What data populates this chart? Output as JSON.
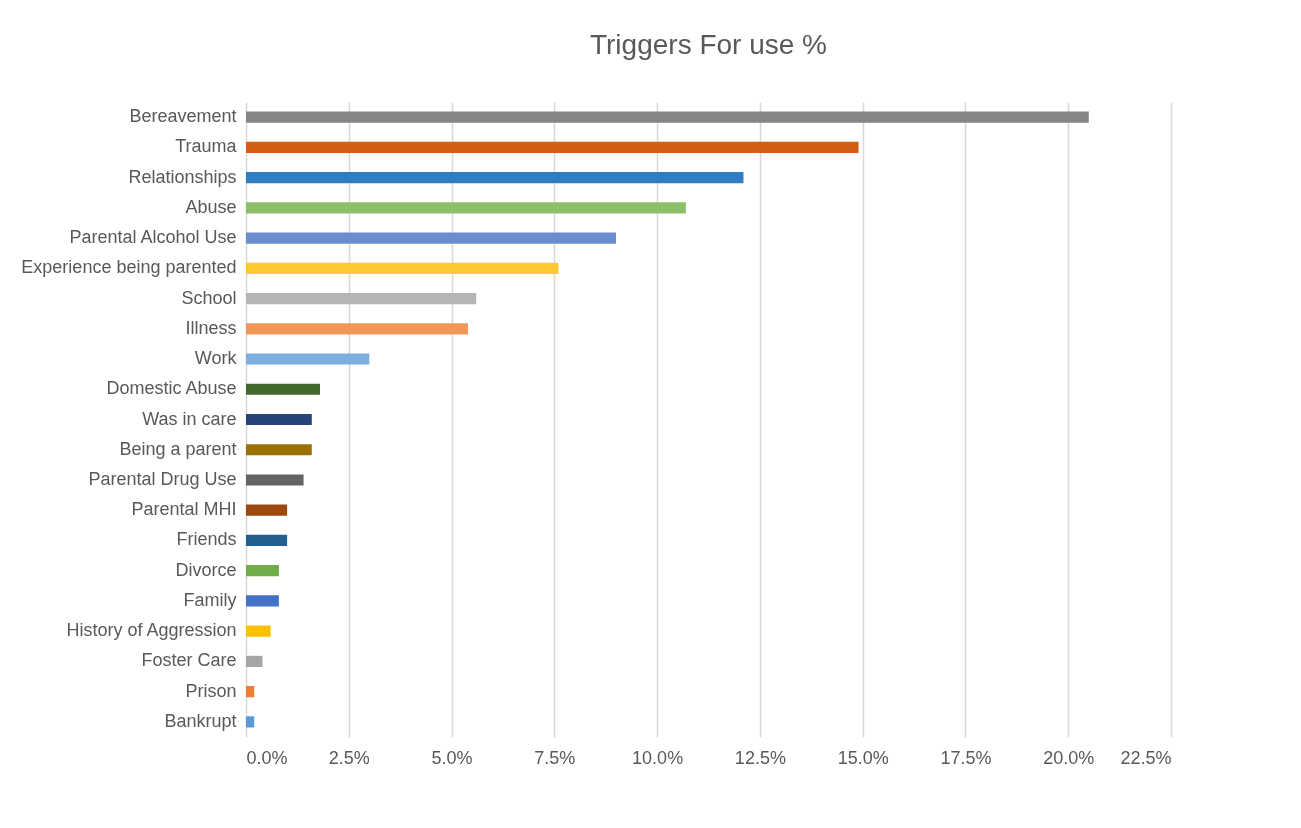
{
  "chart_data": {
    "type": "bar",
    "orientation": "horizontal",
    "title": "Triggers For use %",
    "categories": [
      "Bereavement",
      "Trauma",
      "Relationships",
      "Abuse",
      "Parental Alcohol Use",
      "Experience being parented",
      "School",
      "Illness",
      "Work",
      "Domestic Abuse",
      "Was in care",
      "Being a parent",
      "Parental Drug Use",
      "Parental MHI",
      "Friends",
      "Divorce",
      "Family",
      "History of Aggression",
      "Foster Care",
      "Prison",
      "Bankrupt"
    ],
    "values": [
      20.5,
      14.9,
      12.1,
      10.7,
      9.0,
      7.6,
      5.6,
      5.4,
      3.0,
      1.8,
      1.6,
      1.6,
      1.4,
      1.0,
      1.0,
      0.8,
      0.8,
      0.6,
      0.4,
      0.2,
      0.2
    ],
    "colors": [
      "#858585",
      "#d35f13",
      "#317dc1",
      "#8cc068",
      "#6a8ecd",
      "#ffc933",
      "#b5b5b5",
      "#f2975a",
      "#7daee0",
      "#43682b",
      "#264478",
      "#997300",
      "#636363",
      "#9e480e",
      "#255e91",
      "#70ad47",
      "#4472c4",
      "#ffc000",
      "#a5a5a5",
      "#ed7d31",
      "#5b9bd5"
    ],
    "xlim": [
      0,
      22.5
    ],
    "xticks": [
      {
        "value": 0,
        "label": "0.0%"
      },
      {
        "value": 2.5,
        "label": "2.5%"
      },
      {
        "value": 5,
        "label": "5.0%"
      },
      {
        "value": 7.5,
        "label": "7.5%"
      },
      {
        "value": 10,
        "label": "10.0%"
      },
      {
        "value": 12.5,
        "label": "12.5%"
      },
      {
        "value": 15,
        "label": "15.0%"
      },
      {
        "value": 17.5,
        "label": "17.5%"
      },
      {
        "value": 20,
        "label": "20.0%"
      },
      {
        "value": 22.5,
        "label": "22.5%"
      }
    ],
    "grid": "x",
    "legend": false
  }
}
